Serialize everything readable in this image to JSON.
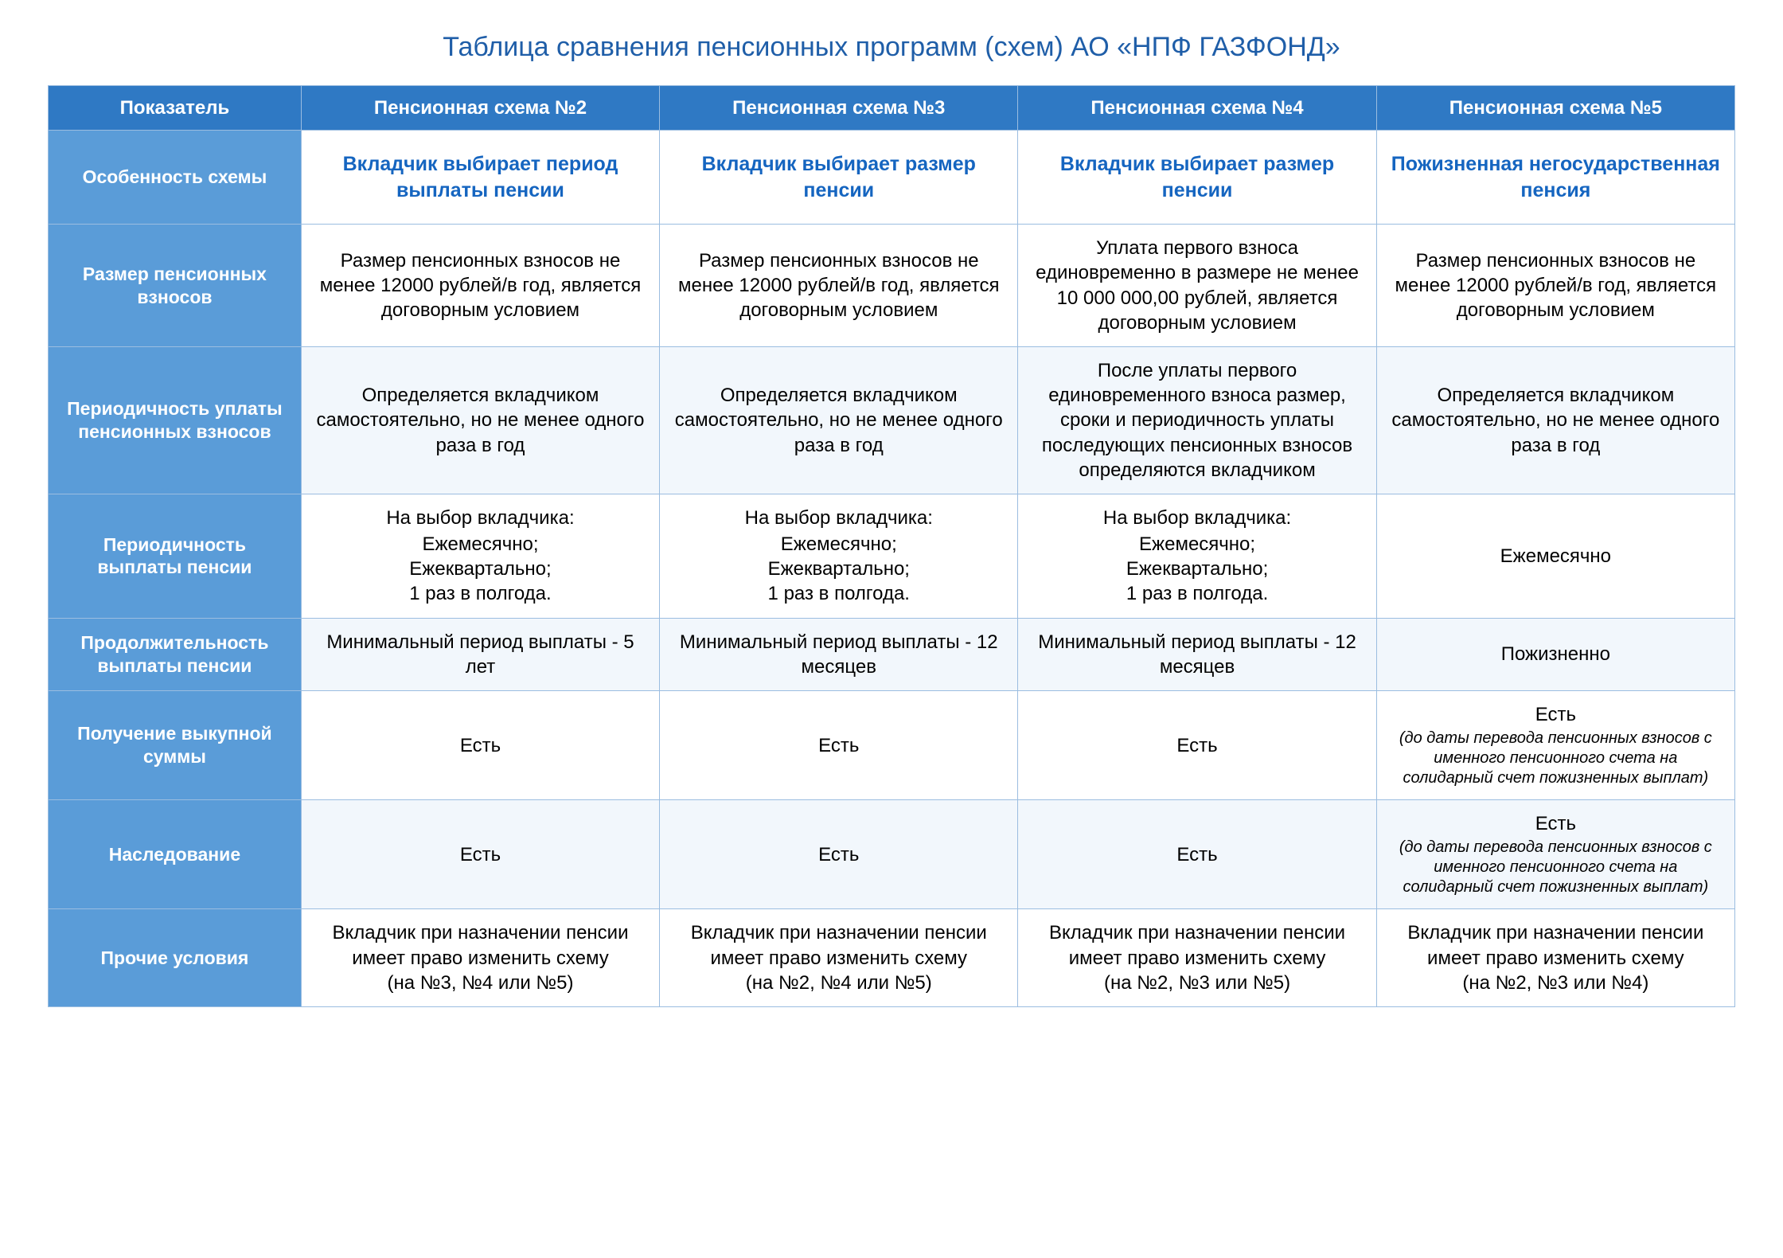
{
  "title": "Таблица сравнения пенсионных программ (схем) АО «НПФ ГАЗФОНД»",
  "colors": {
    "header_blue": "#2f79c4",
    "rowhead_blue": "#5a9cd8",
    "title_blue": "#1f5ea8",
    "feature_blue": "#1565c0",
    "border": "#9bbde0",
    "alt_row": "#f2f7fc",
    "background": "#ffffff"
  },
  "header": {
    "indicator": "Показатель",
    "scheme2": "Пенсионная схема №2",
    "scheme3": "Пенсионная схема №3",
    "scheme4": "Пенсионная схема №4",
    "scheme5": "Пенсионная схема №5"
  },
  "rows": {
    "feature": {
      "label": "Особенность схемы",
      "s2": "Вкладчик выбирает период выплаты пенсии",
      "s3": "Вкладчик выбирает размер пенсии",
      "s4": "Вкладчик выбирает размер пенсии",
      "s5": "Пожизненная негосударственная пенсия"
    },
    "contrib_size": {
      "label": "Размер пенсионных взносов",
      "s2": "Размер пенсионных взносов не менее 12000 рублей/в год, является договорным условием",
      "s3": "Размер пенсионных взносов не менее 12000 рублей/в год, является договорным условием",
      "s4": "Уплата первого взноса единовременно в размере не менее 10 000 000,00 рублей, является договорным условием",
      "s5": "Размер пенсионных взносов не менее 12000 рублей/в год, является договорным условием"
    },
    "contrib_period": {
      "label": "Периодичность уплаты пенсионных взносов",
      "s2": "Определяется вкладчиком самостоятельно, но не менее одного раза в год",
      "s3": "Определяется вкладчиком самостоятельно, но не менее одного раза в год",
      "s4": "После уплаты первого единовременного взноса размер, сроки и периодичность уплаты последующих пенсионных взносов определяются вкладчиком",
      "s5": "Определяется вкладчиком самостоятельно, но не менее одного раза в год"
    },
    "payout_period": {
      "label": "Периодичность выплаты пенсии",
      "choice_hdr": "На выбор вкладчика:",
      "choice_opts": "Ежемесячно;\nЕжеквартально;\n1 раз в полгода.",
      "s5": "Ежемесячно"
    },
    "duration": {
      "label": "Продолжительность выплаты пенсии",
      "s2": "Минимальный период выплаты -  5 лет",
      "s3": "Минимальный период выплаты -  12 месяцев",
      "s4": "Минимальный период выплаты - 12 месяцев",
      "s5": "Пожизненно"
    },
    "surrender": {
      "label": "Получение выкупной суммы",
      "yes": "Есть",
      "s5_lead": "Есть",
      "s5_note": "(до даты перевода пенсионных взносов с именного пенсионного счета на солидарный счет пожизненных выплат)"
    },
    "inherit": {
      "label": "Наследование",
      "yes": "Есть",
      "s5_lead": "Есть",
      "s5_note": "(до даты перевода пенсионных взносов с именного пенсионного счета на солидарный счет пожизненных выплат)"
    },
    "other": {
      "label": "Прочие условия",
      "common": "Вкладчик при назначении пенсии имеет право изменить схему",
      "s2_tail": "(на №3, №4 или №5)",
      "s3_tail": "(на №2, №4 или №5)",
      "s4_tail": "(на №2, №3 или №5)",
      "s5_tail": "(на №2, №3 или №4)"
    }
  }
}
